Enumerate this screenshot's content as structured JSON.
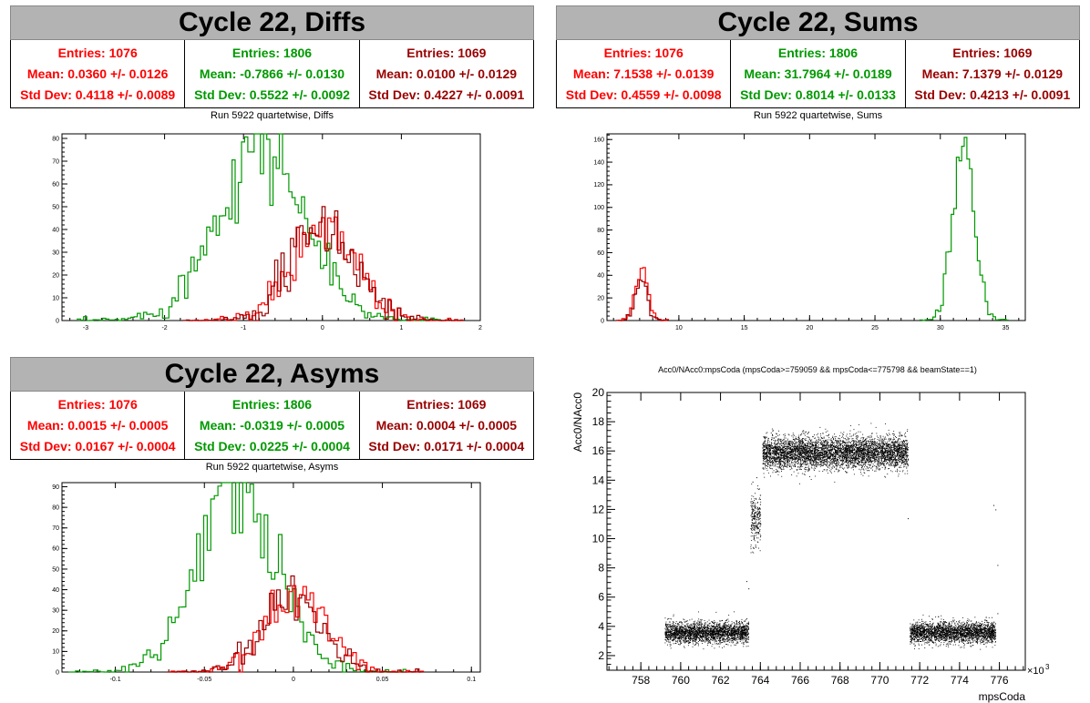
{
  "panels": [
    {
      "id": "diffs",
      "title": "Cycle 22, Diffs",
      "subtitle": "Run 5922 quartetwise, Diffs",
      "stats": [
        {
          "color": "#ff0000",
          "entries": "Entries: 1076",
          "mean": "Mean: 0.0360 +/- 0.0126",
          "std": "Std Dev: 0.4118 +/- 0.0089"
        },
        {
          "color": "#009900",
          "entries": "Entries: 1806",
          "mean": "Mean: -0.7866 +/- 0.0130",
          "std": "Std Dev: 0.5522 +/- 0.0092"
        },
        {
          "color": "#990000",
          "entries": "Entries: 1069",
          "mean": "Mean: 0.0100 +/- 0.0129",
          "std": "Std Dev: 0.4227 +/- 0.0091"
        }
      ]
    },
    {
      "id": "sums",
      "title": "Cycle 22, Sums",
      "subtitle": "Run 5922 quartetwise, Sums",
      "stats": [
        {
          "color": "#ff0000",
          "entries": "Entries: 1076",
          "mean": "Mean: 7.1538 +/- 0.0139",
          "std": "Std Dev: 0.4559 +/- 0.0098"
        },
        {
          "color": "#009900",
          "entries": "Entries: 1806",
          "mean": "Mean: 31.7964 +/- 0.0189",
          "std": "Std Dev: 0.8014 +/- 0.0133"
        },
        {
          "color": "#990000",
          "entries": "Entries: 1069",
          "mean": "Mean: 7.1379 +/- 0.0129",
          "std": "Std Dev: 0.4213 +/- 0.0091"
        }
      ]
    },
    {
      "id": "asyms",
      "title": "Cycle 22, Asyms",
      "subtitle": "Run 5922 quartetwise, Asyms",
      "stats": [
        {
          "color": "#ff0000",
          "entries": "Entries: 1076",
          "mean": "Mean: 0.0015 +/- 0.0005",
          "std": "Std Dev: 0.0167 +/- 0.0004"
        },
        {
          "color": "#009900",
          "entries": "Entries: 1806",
          "mean": "Mean: -0.0319 +/- 0.0005",
          "std": "Std Dev: 0.0225 +/- 0.0004"
        },
        {
          "color": "#990000",
          "entries": "Entries: 1069",
          "mean": "Mean: 0.0004 +/- 0.0005",
          "std": "Std Dev: 0.0171 +/- 0.0004"
        }
      ]
    }
  ],
  "scatter_title": "Acc0/NAcc0:mpsCoda (mpsCoda>=759059 && mpsCoda<=775798 && beamState==1)",
  "chart_data": [
    {
      "type": "line",
      "id": "diffs-hist",
      "xlim": [
        -3.3,
        2
      ],
      "ylim": [
        0,
        82
      ],
      "xticks": [
        -3,
        -2,
        -1,
        0,
        1,
        2
      ],
      "yticks": [
        0,
        10,
        20,
        30,
        40,
        50,
        60,
        70,
        80
      ],
      "series": [
        {
          "color": "#009900",
          "mean": -0.7866,
          "std": 0.5522,
          "peak": 77,
          "bin": 0.04
        },
        {
          "color": "#ff0000",
          "mean": 0.036,
          "std": 0.4118,
          "peak": 42,
          "bin": 0.04
        },
        {
          "color": "#990000",
          "mean": 0.01,
          "std": 0.4227,
          "peak": 40,
          "bin": 0.04
        }
      ]
    },
    {
      "type": "line",
      "id": "sums-hist",
      "xlim": [
        4.5,
        36.5
      ],
      "ylim": [
        0,
        165
      ],
      "xticks": [
        10,
        15,
        20,
        25,
        30,
        35
      ],
      "yticks": [
        0,
        20,
        40,
        60,
        80,
        100,
        120,
        140,
        160
      ],
      "series": [
        {
          "color": "#009900",
          "mean": 31.7964,
          "std": 0.8014,
          "peak": 158,
          "bin": 0.2
        },
        {
          "color": "#ff0000",
          "mean": 7.1538,
          "std": 0.4559,
          "peak": 44,
          "bin": 0.2
        },
        {
          "color": "#990000",
          "mean": 7.1379,
          "std": 0.4213,
          "peak": 40,
          "bin": 0.2
        }
      ]
    },
    {
      "type": "line",
      "id": "asyms-hist",
      "xlim": [
        -0.13,
        0.105
      ],
      "ylim": [
        0,
        92
      ],
      "xticks": [
        -0.1,
        -0.05,
        0,
        0.05,
        0.1
      ],
      "xticklabels": [
        "-0.1",
        "-0.05",
        "0",
        "0.05",
        "0.1"
      ],
      "yticks": [
        0,
        10,
        20,
        30,
        40,
        50,
        60,
        70,
        80,
        90
      ],
      "series": [
        {
          "color": "#009900",
          "mean": -0.0319,
          "std": 0.0225,
          "peak": 88,
          "bin": 0.002
        },
        {
          "color": "#ff0000",
          "mean": 0.0015,
          "std": 0.0167,
          "peak": 40,
          "bin": 0.002
        },
        {
          "color": "#990000",
          "mean": 0.0004,
          "std": 0.0171,
          "peak": 38,
          "bin": 0.002
        }
      ]
    },
    {
      "type": "scatter",
      "id": "acc-scatter",
      "title": "Acc0/NAcc0:mpsCoda (mpsCoda>=759059 && mpsCoda<=775798 && beamState==1)",
      "xlabel": "mpsCoda",
      "ylabel": "Acc0/NAcc0",
      "xexp": "×10",
      "xexp_sup": "3",
      "xlim": [
        756.3,
        777.3
      ],
      "ylim": [
        1,
        20
      ],
      "xticks": [
        758,
        760,
        762,
        764,
        766,
        768,
        770,
        772,
        774,
        776
      ],
      "yticks": [
        2,
        4,
        6,
        8,
        10,
        12,
        14,
        16,
        18,
        20
      ],
      "clusters": [
        {
          "x": [
            759.2,
            763.4
          ],
          "ymean": 3.6,
          "ysd": 0.35,
          "n": 2600
        },
        {
          "x": [
            763.5,
            764.0
          ],
          "ymean": 11.3,
          "ysd": 0.9,
          "n": 260
        },
        {
          "x": [
            764.1,
            771.4
          ],
          "ymean": 15.9,
          "ysd": 0.55,
          "n": 5200
        },
        {
          "x": [
            771.5,
            775.8
          ],
          "ymean": 3.6,
          "ysd": 0.35,
          "n": 2700
        }
      ]
    }
  ]
}
